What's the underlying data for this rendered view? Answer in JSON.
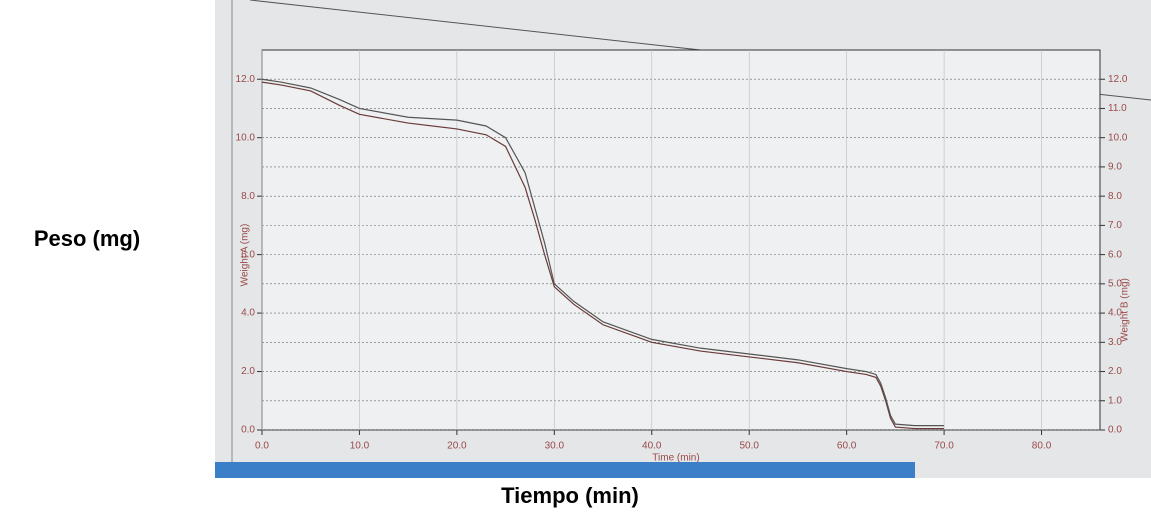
{
  "chart_data": {
    "type": "line",
    "outer_ylabel": "Peso (mg)",
    "outer_xlabel": "Tiempo (min)",
    "xlabel": "Time (min)",
    "ylabel": "Weight A (mg)",
    "y2label": "Weight B (mg)",
    "x": [
      0,
      2,
      5,
      8,
      10,
      15,
      20,
      23,
      25,
      27,
      28,
      29,
      30,
      32,
      35,
      40,
      45,
      50,
      55,
      60,
      62,
      63,
      63.5,
      64,
      64.5,
      65,
      67,
      70
    ],
    "series": [
      {
        "name": "Weight A",
        "color": "#6b3a3a",
        "values": [
          11.9,
          11.8,
          11.6,
          11.1,
          10.8,
          10.5,
          10.3,
          10.1,
          9.7,
          8.3,
          7.2,
          6.0,
          4.9,
          4.3,
          3.6,
          3.0,
          2.7,
          2.5,
          2.3,
          2.0,
          1.9,
          1.8,
          1.5,
          1.0,
          0.4,
          0.1,
          0.05,
          0.05
        ]
      },
      {
        "name": "Weight B",
        "color": "#555555",
        "axis": "y2",
        "values": [
          12.0,
          11.9,
          11.7,
          11.3,
          11.0,
          10.7,
          10.6,
          10.4,
          10.0,
          8.8,
          7.6,
          6.4,
          5.0,
          4.4,
          3.7,
          3.1,
          2.8,
          2.6,
          2.4,
          2.1,
          2.0,
          1.9,
          1.6,
          1.1,
          0.5,
          0.2,
          0.15,
          0.15
        ]
      }
    ],
    "xlim": [
      0,
      86
    ],
    "ylim": [
      0,
      13
    ],
    "y2lim": [
      0,
      13
    ],
    "xticks": [
      {
        "value": 0,
        "label": "0.0"
      },
      {
        "value": 10,
        "label": "10.0"
      },
      {
        "value": 20,
        "label": "20.0"
      },
      {
        "value": 30,
        "label": "30.0"
      },
      {
        "value": 40,
        "label": "40.0"
      },
      {
        "value": 50,
        "label": "50.0"
      },
      {
        "value": 60,
        "label": "60.0"
      },
      {
        "value": 70,
        "label": "70.0"
      },
      {
        "value": 80,
        "label": "80.0"
      }
    ],
    "yticks": [
      {
        "value": 0,
        "label": "0.0"
      },
      {
        "value": 2,
        "label": "2.0"
      },
      {
        "value": 4,
        "label": "4.0"
      },
      {
        "value": 6,
        "label": "6.0"
      },
      {
        "value": 8,
        "label": "8.0"
      },
      {
        "value": 10,
        "label": "10.0"
      },
      {
        "value": 12,
        "label": "12.0"
      }
    ],
    "y2ticks": [
      {
        "value": 0,
        "label": "0.0"
      },
      {
        "value": 1,
        "label": "1.0"
      },
      {
        "value": 2,
        "label": "2.0"
      },
      {
        "value": 3,
        "label": "3.0"
      },
      {
        "value": 4,
        "label": "4.0"
      },
      {
        "value": 5,
        "label": "5.0"
      },
      {
        "value": 6,
        "label": "6.0"
      },
      {
        "value": 7,
        "label": "7.0"
      },
      {
        "value": 8,
        "label": "8.0"
      },
      {
        "value": 9,
        "label": "9.0"
      },
      {
        "value": 10,
        "label": "10.0"
      },
      {
        "value": 11,
        "label": "11.0"
      },
      {
        "value": 12,
        "label": "12.0"
      }
    ],
    "grid": true
  }
}
